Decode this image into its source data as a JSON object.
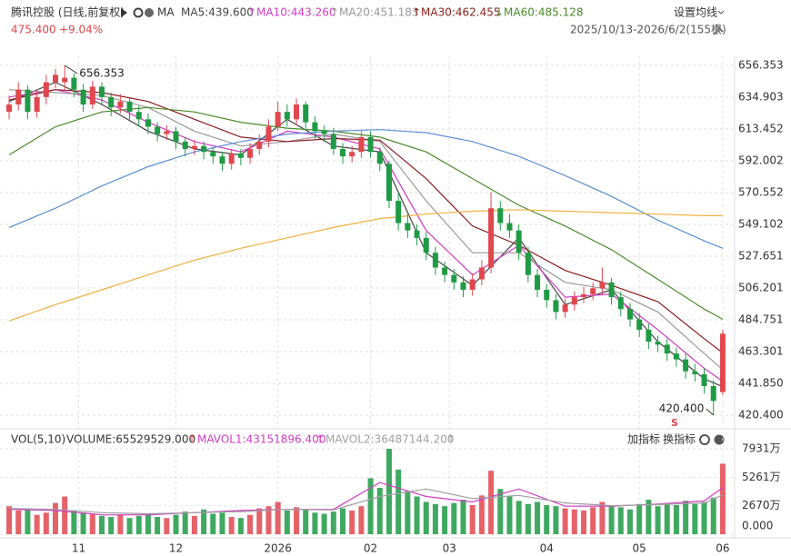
{
  "header": {
    "title": "腾讯控股 (日线,前复权)",
    "ma_button": "MA",
    "price": "475.400",
    "change": "+9.04%",
    "range": "2025/10/13-2026/6/2(155根)",
    "settings": "设置均线"
  },
  "chart_data": [
    {
      "type": "candlestick",
      "xlim": [
        -0.4,
        155
      ],
      "ylim": [
        414.88,
        662.48
      ],
      "yticks": [
        656.353,
        634.903,
        613.452,
        592.002,
        570.552,
        549.102,
        527.651,
        506.201,
        484.751,
        463.301,
        {
          "value": 441.85,
          "label": "441.850"
        },
        {
          "value": 420.4,
          "label": "420.400"
        }
      ],
      "xlabels": [
        {
          "day": 15,
          "label": "11"
        },
        {
          "day": 36,
          "label": "12"
        },
        {
          "day": 58,
          "label": "2026"
        },
        {
          "day": 78,
          "label": "02"
        },
        {
          "day": 95,
          "label": "03"
        },
        {
          "day": 116,
          "label": "04"
        },
        {
          "day": 136,
          "label": "05"
        },
        {
          "day": 154,
          "label": "06"
        }
      ],
      "up_color": "#e0474f",
      "down_color": "#1f9a45",
      "grid": true,
      "candles": {
        "day": [
          0,
          2,
          4,
          6,
          8,
          10,
          12,
          14,
          16,
          18,
          20,
          22,
          24,
          26,
          28,
          30,
          32,
          34,
          36,
          38,
          40,
          42,
          44,
          46,
          48,
          50,
          52,
          54,
          56,
          58,
          60,
          62,
          64,
          66,
          68,
          70,
          72,
          74,
          76,
          78,
          80,
          82,
          84,
          86,
          88,
          90,
          92,
          94,
          96,
          98,
          100,
          102,
          104,
          106,
          108,
          110,
          112,
          114,
          116,
          118,
          120,
          122,
          124,
          126,
          128,
          130,
          132,
          134,
          136,
          138,
          140,
          142,
          144,
          146,
          148,
          150,
          152,
          154
        ],
        "open": [
          625,
          630,
          640,
          625,
          635,
          645,
          645,
          648,
          640,
          630,
          642,
          635,
          628,
          632,
          625,
          620,
          615,
          610,
          612,
          605,
          600,
          602,
          598,
          595,
          590,
          597,
          594,
          600,
          605,
          615,
          625,
          620,
          630,
          618,
          612,
          610,
          600,
          595,
          598,
          608,
          598,
          590,
          565,
          550,
          545,
          540,
          530,
          520,
          515,
          510,
          505,
          512,
          520,
          560,
          550,
          545,
          530,
          515,
          505,
          498,
          490,
          495,
          500,
          502,
          506,
          510,
          500,
          492,
          485,
          478,
          470,
          468,
          462,
          458,
          450,
          448,
          440,
          436
        ],
        "high": [
          636,
          645,
          643,
          640,
          650,
          654,
          656.353,
          651,
          644,
          646,
          645,
          638,
          637,
          635,
          629,
          624,
          618,
          616,
          615,
          608,
          606,
          605,
          601,
          598,
          600,
          600,
          604,
          610,
          620,
          632,
          630,
          634,
          632,
          622,
          616,
          614,
          604,
          602,
          612,
          612,
          601,
          592,
          570,
          556,
          549,
          544,
          534,
          524,
          519,
          514,
          516,
          525,
          571,
          565,
          556,
          549,
          534,
          519,
          509,
          502,
          499,
          504,
          507,
          510,
          520,
          513,
          504,
          496,
          489,
          482,
          474,
          472,
          466,
          462,
          455,
          452,
          444,
          478
        ],
        "low": [
          620,
          626,
          620,
          621,
          630,
          641,
          640,
          635,
          625,
          627,
          630,
          622,
          624,
          620,
          615,
          610,
          605,
          606,
          600,
          595,
          596,
          593,
          590,
          585,
          586,
          589,
          590,
          596,
          601,
          612,
          615,
          616,
          614,
          607,
          605,
          596,
          590,
          591,
          594,
          594,
          585,
          560,
          545,
          540,
          535,
          525,
          515,
          510,
          505,
          500,
          501,
          508,
          516,
          545,
          540,
          525,
          510,
          500,
          493,
          485,
          486,
          491,
          496,
          498,
          502,
          495,
          487,
          480,
          473,
          465,
          463,
          457,
          453,
          445,
          443,
          435,
          420.4,
          434
        ],
        "close": [
          630,
          640,
          625,
          635,
          645,
          650,
          648,
          640,
          630,
          642,
          635,
          628,
          632,
          625,
          620,
          615,
          610,
          612,
          605,
          600,
          602,
          598,
          595,
          590,
          597,
          594,
          600,
          605,
          615,
          625,
          620,
          630,
          618,
          612,
          610,
          600,
          595,
          598,
          608,
          598,
          590,
          565,
          550,
          545,
          540,
          530,
          520,
          515,
          510,
          505,
          512,
          520,
          560,
          550,
          545,
          530,
          515,
          505,
          498,
          490,
          495,
          500,
          502,
          506,
          510,
          500,
          492,
          485,
          478,
          470,
          468,
          462,
          458,
          450,
          448,
          440,
          430,
          475.4
        ]
      },
      "ma": [
        {
          "label": "MA5:439.600",
          "color": "#444444",
          "days": [
            0,
            10,
            20,
            30,
            40,
            50,
            60,
            70,
            80,
            90,
            100,
            110,
            120,
            130,
            140,
            150,
            154
          ],
          "values": [
            632,
            645,
            630,
            612,
            600,
            596,
            620,
            602,
            598,
            530,
            508,
            540,
            495,
            505,
            470,
            445,
            439.6
          ]
        },
        {
          "arrow": "↑",
          "label": "MA10:443.260",
          "color": "#d23cc4",
          "days": [
            0,
            10,
            20,
            30,
            40,
            50,
            60,
            70,
            80,
            90,
            100,
            110,
            120,
            130,
            140,
            150,
            154
          ],
          "values": [
            635,
            640,
            633,
            618,
            605,
            598,
            612,
            608,
            600,
            545,
            515,
            535,
            500,
            502,
            478,
            452,
            443.26
          ]
        },
        {
          "arrow": "↑",
          "label": "MA20:451.183",
          "color": "#999999",
          "days": [
            0,
            10,
            20,
            30,
            40,
            50,
            60,
            70,
            80,
            90,
            100,
            110,
            120,
            130,
            140,
            150,
            154
          ],
          "values": [
            640,
            638,
            636,
            628,
            612,
            602,
            605,
            610,
            605,
            565,
            530,
            530,
            510,
            505,
            490,
            462,
            451.183
          ]
        },
        {
          "arrow": "↑",
          "label": "MA30:462.455",
          "color": "#8b1c1c",
          "days": [
            0,
            10,
            20,
            30,
            40,
            50,
            60,
            70,
            80,
            90,
            100,
            110,
            120,
            130,
            140,
            150,
            154
          ],
          "values": [
            633,
            640,
            638,
            632,
            620,
            608,
            605,
            607,
            606,
            580,
            548,
            535,
            518,
            508,
            497,
            472,
            462.455
          ]
        },
        {
          "arrow": "↓",
          "label": "MA60:485.128",
          "color": "#4a8a2a",
          "days": [
            0,
            10,
            20,
            30,
            40,
            50,
            60,
            70,
            80,
            90,
            100,
            110,
            120,
            130,
            140,
            150,
            154
          ],
          "values": [
            596,
            615,
            625,
            628,
            625,
            618,
            614,
            612,
            608,
            598,
            580,
            562,
            548,
            532,
            512,
            492,
            485.128
          ]
        },
        {
          "color": "#5b8fd6",
          "days": [
            0,
            10,
            20,
            30,
            40,
            50,
            60,
            70,
            80,
            90,
            100,
            110,
            120,
            130,
            140,
            150,
            154
          ],
          "values": [
            547,
            560,
            575,
            588,
            598,
            605,
            610,
            612,
            613,
            611,
            605,
            595,
            582,
            568,
            552,
            538,
            533
          ]
        },
        {
          "color": "#f0b040",
          "days": [
            0,
            10,
            20,
            30,
            40,
            50,
            60,
            70,
            80,
            90,
            100,
            110,
            120,
            130,
            140,
            150,
            154
          ],
          "values": [
            484,
            495,
            505,
            515,
            525,
            533,
            540,
            547,
            553,
            556,
            558,
            559,
            558,
            557,
            556,
            555,
            555
          ]
        }
      ],
      "annotations": [
        {
          "day": 12,
          "value": 656.353,
          "label": "656.353"
        },
        {
          "day": 152,
          "value": 420.4,
          "label": "420.400"
        }
      ],
      "signal": "S"
    },
    {
      "type": "bar",
      "ylim": [
        0,
        8693
      ],
      "yticks": [
        {
          "value": 7931,
          "label": "7931万"
        },
        {
          "value": 5261,
          "label": "5261万"
        },
        {
          "value": 2670,
          "label": "2670万"
        },
        {
          "value": 0,
          "label": "0.000"
        }
      ],
      "title": "VOL(5,10)",
      "volume_label": "VOLUME:65529529.000",
      "volume_arrow": "↑",
      "buttons": [
        "加指标",
        "换指标"
      ],
      "days": [
        0,
        2,
        4,
        6,
        8,
        10,
        12,
        14,
        16,
        18,
        20,
        22,
        24,
        26,
        28,
        30,
        32,
        34,
        36,
        38,
        40,
        42,
        44,
        46,
        48,
        50,
        52,
        54,
        56,
        58,
        60,
        62,
        64,
        66,
        68,
        70,
        72,
        74,
        76,
        78,
        80,
        82,
        84,
        86,
        88,
        90,
        92,
        94,
        96,
        98,
        100,
        102,
        104,
        106,
        108,
        110,
        112,
        114,
        116,
        118,
        120,
        122,
        124,
        126,
        128,
        130,
        132,
        134,
        136,
        138,
        140,
        142,
        144,
        146,
        148,
        150,
        152,
        154
      ],
      "values": [
        2600,
        2200,
        2400,
        1800,
        2000,
        2900,
        3500,
        2200,
        2000,
        1900,
        1700,
        1600,
        1800,
        1500,
        1700,
        1900,
        1600,
        1500,
        1800,
        2100,
        1700,
        2300,
        1900,
        2000,
        1600,
        1500,
        1800,
        2400,
        2600,
        3000,
        2200,
        2500,
        2300,
        2000,
        1900,
        2100,
        2400,
        2200,
        2600,
        5200,
        4300,
        7931,
        6000,
        4000,
        3500,
        3000,
        2800,
        2600,
        2900,
        3200,
        2700,
        3600,
        5900,
        4200,
        3500,
        3100,
        2800,
        3000,
        2700,
        2600,
        2400,
        2300,
        2200,
        2500,
        3000,
        2600,
        2500,
        2300,
        2800,
        3200,
        2600,
        2900,
        2700,
        3100,
        2800,
        3000,
        3400,
        6552.9529
      ],
      "lines": [
        {
          "arrow": "↑",
          "label": "MAVOL1:43151896.400",
          "color": "#d23cc4",
          "days": [
            0,
            10,
            20,
            30,
            40,
            50,
            60,
            70,
            80,
            90,
            100,
            110,
            120,
            130,
            140,
            150,
            154
          ],
          "values": [
            2300,
            2200,
            1800,
            1800,
            2000,
            2200,
            2300,
            2300,
            4800,
            3500,
            3000,
            4200,
            2600,
            2600,
            2800,
            3100,
            4315.19
          ]
        },
        {
          "arrow": "↑",
          "label": "MAVOL2:36487144.200",
          "color": "#a0a0a0",
          "days": [
            0,
            10,
            20,
            30,
            40,
            50,
            60,
            70,
            80,
            90,
            100,
            110,
            120,
            130,
            140,
            150,
            154
          ],
          "values": [
            2400,
            2300,
            2000,
            1900,
            2000,
            2100,
            2300,
            2250,
            3500,
            4200,
            3300,
            3600,
            2900,
            2650,
            2750,
            2900,
            3648.71
          ]
        }
      ],
      "end_arrow": "↑"
    }
  ]
}
